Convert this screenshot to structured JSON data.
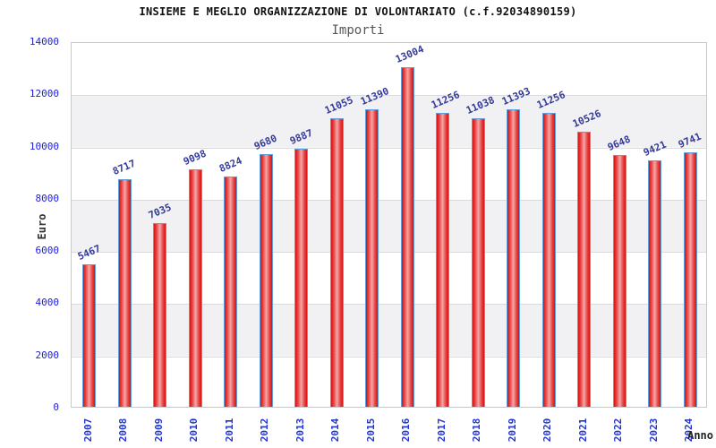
{
  "header": {
    "title": "INSIEME E MEGLIO ORGANIZZAZIONE DI VOLONTARIATO (c.f.92034890159)",
    "subtitle": "Importi"
  },
  "chart_data": {
    "type": "bar",
    "title": "INSIEME E MEGLIO ORGANIZZAZIONE DI VOLONTARIATO (c.f.92034890159)",
    "subtitle": "Importi",
    "xlabel": "Anno",
    "ylabel": "Euro",
    "categories": [
      "2007",
      "2008",
      "2009",
      "2010",
      "2011",
      "2012",
      "2013",
      "2014",
      "2015",
      "2016",
      "2017",
      "2018",
      "2019",
      "2020",
      "2021",
      "2022",
      "2023",
      "2024"
    ],
    "values": [
      5467,
      8717,
      7035,
      9098,
      8824,
      9680,
      9887,
      11055,
      11390,
      13004,
      11256,
      11038,
      11393,
      11256,
      10526,
      9648,
      9421,
      9741
    ],
    "ylim": [
      0,
      14000
    ],
    "ytick_step": 2000,
    "ytick_labels": [
      "0",
      "2000",
      "4000",
      "6000",
      "8000",
      "10000",
      "12000",
      "14000"
    ],
    "grid": "alternating horizontal bands with light gridlines",
    "legend": "none",
    "bar_labels_rotated": true,
    "colors": {
      "bar_fill": "#d51212",
      "bar_fill_highlight": "#f5a8a8",
      "bar_border": "#5e9edc",
      "value_label": "#333a99",
      "axis_tick_label": "#2121d8",
      "x_tick_label": "#2135cc",
      "band_gray": "#f1f1f3",
      "title": "#111111",
      "subtitle": "#555555",
      "axis_title": "#333333"
    }
  }
}
